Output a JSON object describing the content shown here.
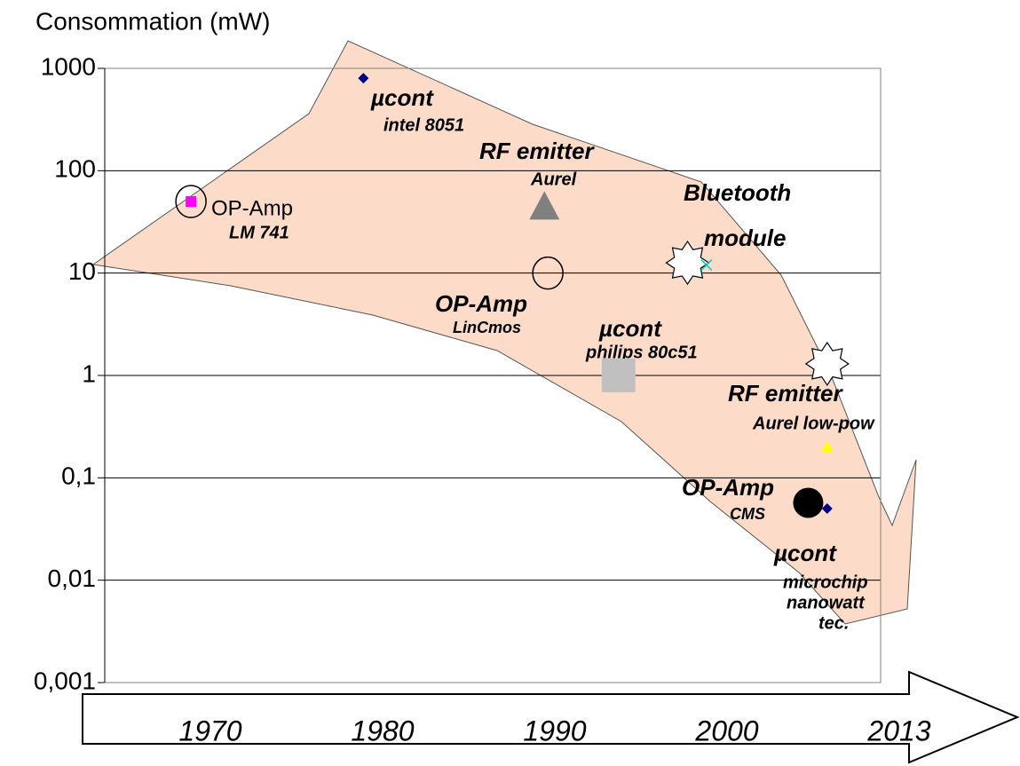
{
  "chart_data": {
    "type": "scatter",
    "title": "Consommation (mW)",
    "log_y": true,
    "grid": true,
    "ylim": [
      0.001,
      1000
    ],
    "yticks": [
      {
        "value": 0.001,
        "label": "0,001"
      },
      {
        "value": 0.01,
        "label": "0,01"
      },
      {
        "value": 0.1,
        "label": "0,1"
      },
      1,
      10,
      100,
      1000
    ],
    "xlim": [
      1964,
      2009
    ],
    "timeline_labels": [
      "1970",
      "1980",
      "1990",
      "2000",
      "2013"
    ],
    "points": [
      {
        "x": 1969,
        "y": 50,
        "marker": "ring",
        "color": "#000000"
      },
      {
        "x": 1969,
        "y": 50,
        "marker": "square",
        "color": "#ff00ff"
      },
      {
        "x": 1979,
        "y": 800,
        "marker": "diamond",
        "color": "#000080"
      },
      {
        "x": 1989.5,
        "y": 45,
        "marker": "triangle",
        "color": "#808080"
      },
      {
        "x": 1989.7,
        "y": 10,
        "marker": "ring",
        "color": "#000000"
      },
      {
        "x": 1993.8,
        "y": 1,
        "marker": "square-big",
        "color": "#c0c0c0"
      },
      {
        "x": 1997.8,
        "y": 12.6,
        "marker": "star",
        "color": "#000000"
      },
      {
        "x": 1998.9,
        "y": 12,
        "marker": "x",
        "color": "#00cccc"
      },
      {
        "x": 2005.9,
        "y": 1.3,
        "marker": "star",
        "color": "#000000"
      },
      {
        "x": 2005.9,
        "y": 0.2,
        "marker": "triangle-small",
        "color": "#ffff00"
      },
      {
        "x": 2004.8,
        "y": 0.057,
        "marker": "dot",
        "color": "#000000"
      },
      {
        "x": 2005.9,
        "y": 0.05,
        "marker": "diamond",
        "color": "#000080"
      }
    ],
    "annotations": [
      "µcont",
      "intel 8051",
      "RF emitter",
      "Aurel",
      "OP-Amp",
      "LM 741",
      "Bluetooth",
      "module",
      "OP-Amp",
      "LinCmos",
      "µcont",
      "philips 80c51",
      "RF emitter",
      "Aurel low-pow",
      "OP-Amp",
      "CMS",
      "µcont",
      "microchip",
      "nanowatt",
      "tec."
    ]
  }
}
